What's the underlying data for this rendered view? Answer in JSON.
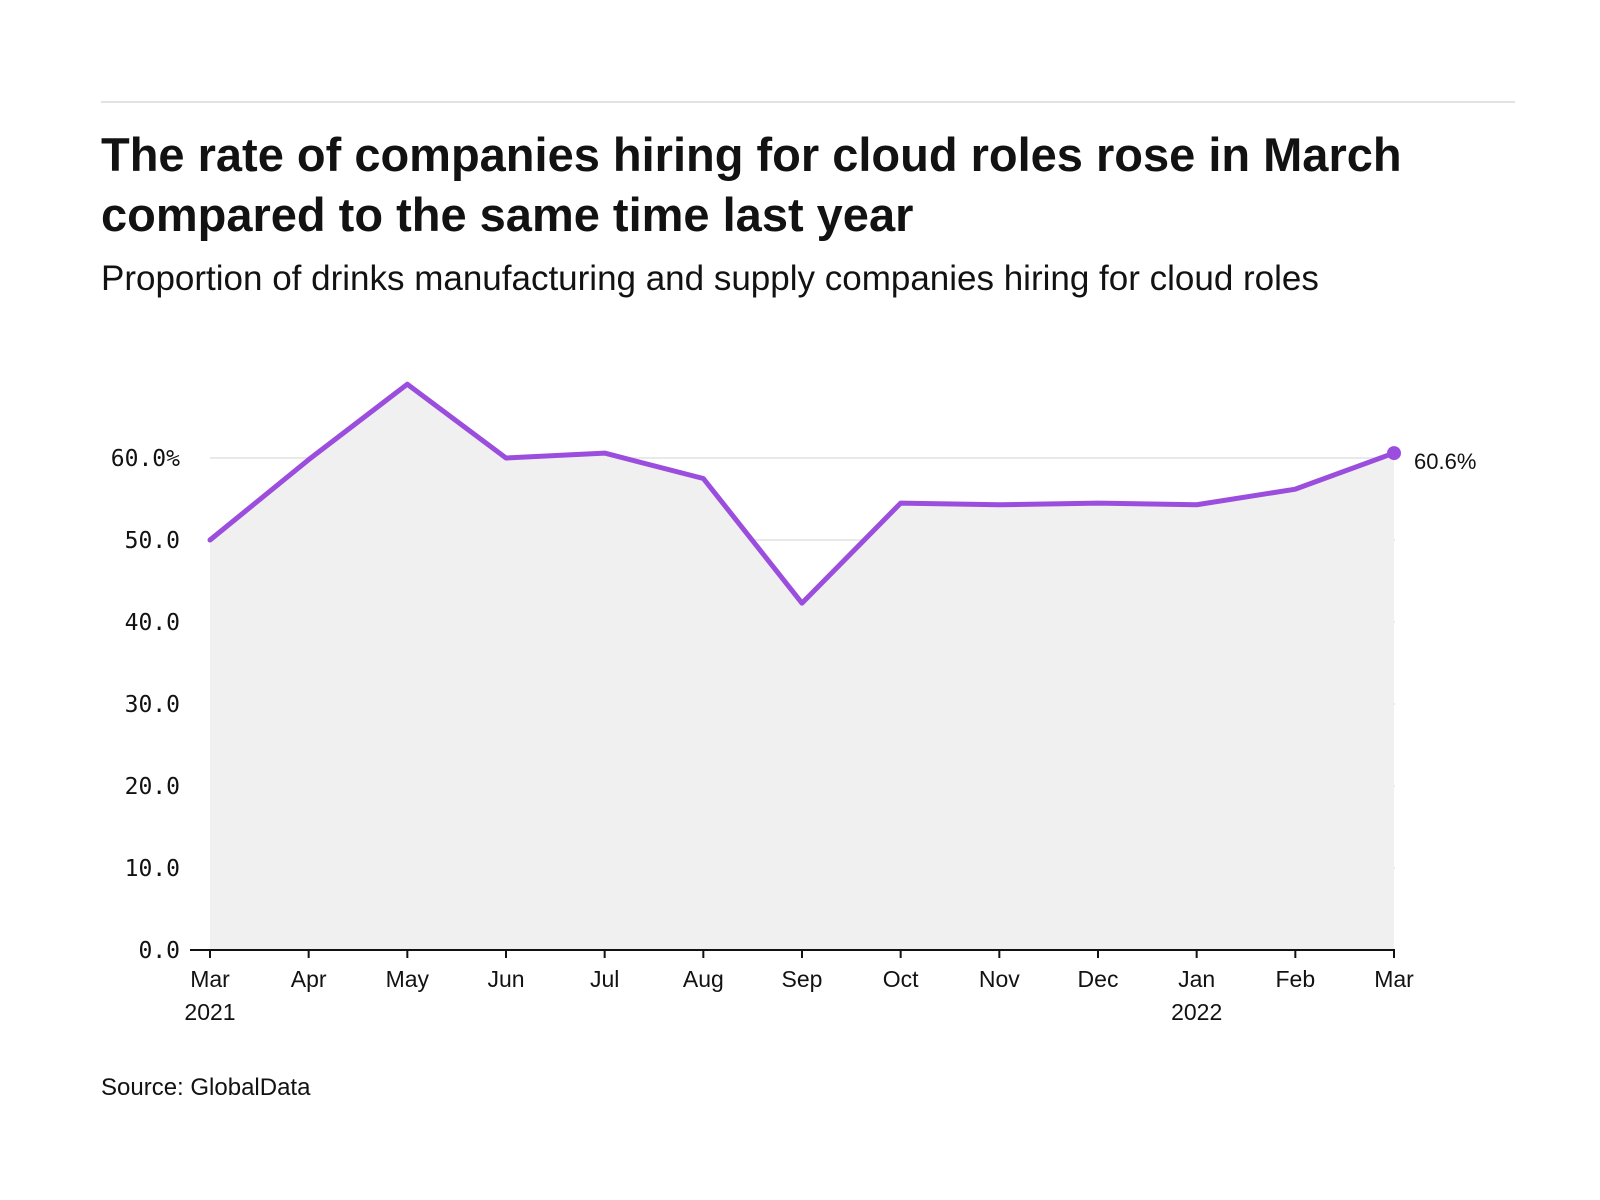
{
  "header": {
    "title": "The rate of companies hiring for cloud roles rose in March compared to the same time last year",
    "subtitle": "Proportion of drinks manufacturing and supply companies hiring for cloud roles"
  },
  "footer": {
    "source": "Source: GlobalData"
  },
  "colors": {
    "line": "#9b4ddd",
    "area": "#f0f0f0",
    "grid": "#e2e2e2",
    "axis": "#121212",
    "text": "#121212"
  },
  "chart_data": {
    "type": "area",
    "x": [
      "Mar 2021",
      "Apr 2021",
      "May 2021",
      "Jun 2021",
      "Jul 2021",
      "Aug 2021",
      "Sep 2021",
      "Oct 2021",
      "Nov 2021",
      "Dec 2021",
      "Jan 2022",
      "Feb 2022",
      "Mar 2022"
    ],
    "x_tick_labels": [
      {
        "month": "Mar",
        "year": "2021"
      },
      {
        "month": "Apr",
        "year": ""
      },
      {
        "month": "May",
        "year": ""
      },
      {
        "month": "Jun",
        "year": ""
      },
      {
        "month": "Jul",
        "year": ""
      },
      {
        "month": "Aug",
        "year": ""
      },
      {
        "month": "Sep",
        "year": ""
      },
      {
        "month": "Oct",
        "year": ""
      },
      {
        "month": "Nov",
        "year": ""
      },
      {
        "month": "Dec",
        "year": ""
      },
      {
        "month": "Jan",
        "year": "2022"
      },
      {
        "month": "Feb",
        "year": ""
      },
      {
        "month": "Mar",
        "year": ""
      }
    ],
    "series": [
      {
        "values": [
          50.0,
          59.8,
          69.0,
          60.0,
          60.6,
          57.5,
          42.3,
          54.5,
          54.3,
          54.5,
          54.3,
          56.2,
          60.6
        ]
      }
    ],
    "y_ticks": [
      0,
      10,
      20,
      30,
      40,
      50,
      60
    ],
    "y_tick_labels": [
      "0.0",
      "10.0",
      "20.0",
      "30.0",
      "40.0",
      "50.0",
      "60.0%"
    ],
    "ylim": [
      0,
      70
    ],
    "end_label": "60.6%",
    "grid": true,
    "legend": "none"
  }
}
